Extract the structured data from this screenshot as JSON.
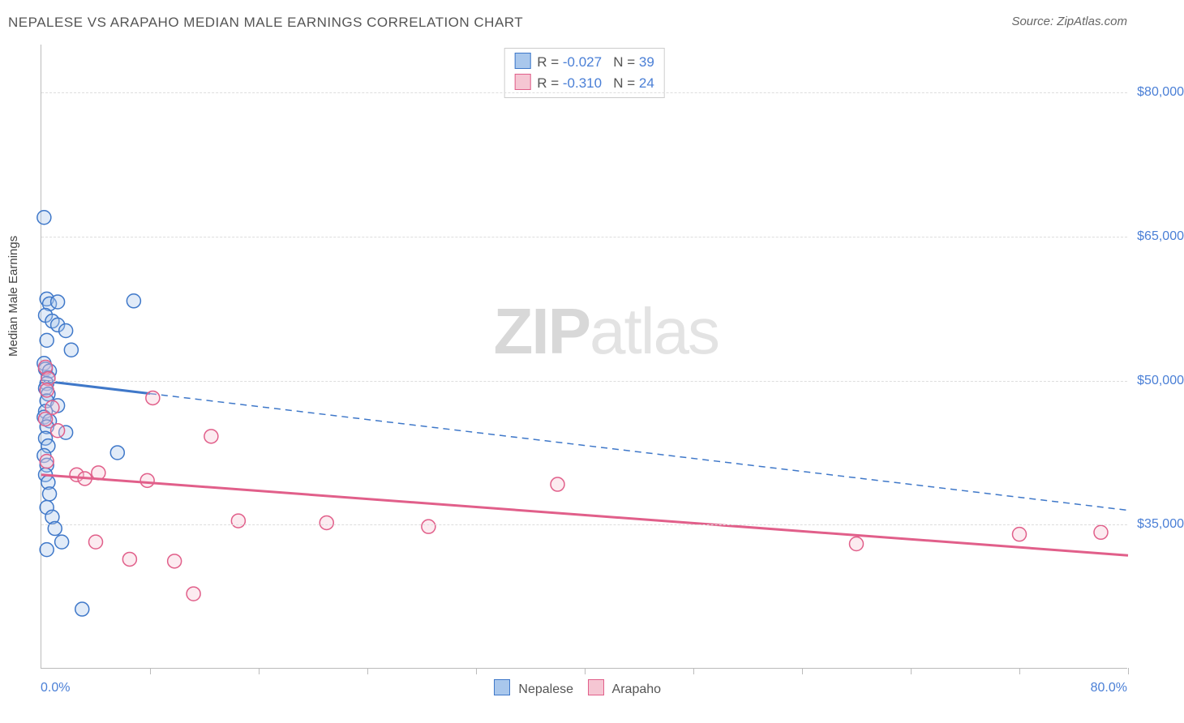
{
  "title": "NEPALESE VS ARAPAHO MEDIAN MALE EARNINGS CORRELATION CHART",
  "source": "Source: ZipAtlas.com",
  "ylabel": "Median Male Earnings",
  "watermark_a": "ZIP",
  "watermark_b": "atlas",
  "chart": {
    "type": "scatter",
    "xlim": [
      0,
      80
    ],
    "ylim": [
      20000,
      85000
    ],
    "x_min_label": "0.0%",
    "x_max_label": "80.0%",
    "y_ticks": [
      35000,
      50000,
      65000,
      80000
    ],
    "y_tick_labels": [
      "$35,000",
      "$50,000",
      "$65,000",
      "$80,000"
    ],
    "x_ticks_minor": [
      8,
      16,
      24,
      32,
      40,
      48,
      56,
      64,
      72,
      80
    ],
    "background_color": "#ffffff",
    "grid_color": "#dddddd",
    "axis_color": "#bbbbbb",
    "marker_radius": 8.5,
    "series": [
      {
        "name": "Nepalese",
        "fill": "#a9c7ec",
        "stroke": "#3f78c9",
        "R": "-0.027",
        "N": "39",
        "trend": {
          "y_at_xmin": 50000,
          "y_at_xmax": 36500,
          "solid_until_x": 8
        },
        "points": [
          [
            0.2,
            67000
          ],
          [
            0.4,
            58500
          ],
          [
            0.6,
            58000
          ],
          [
            1.2,
            58200
          ],
          [
            6.8,
            58300
          ],
          [
            0.3,
            56800
          ],
          [
            0.8,
            56200
          ],
          [
            1.2,
            55800
          ],
          [
            1.8,
            55200
          ],
          [
            0.4,
            54200
          ],
          [
            2.2,
            53200
          ],
          [
            0.2,
            51800
          ],
          [
            0.3,
            51200
          ],
          [
            0.6,
            51000
          ],
          [
            0.5,
            50300
          ],
          [
            0.4,
            49700
          ],
          [
            0.3,
            49200
          ],
          [
            0.5,
            48600
          ],
          [
            0.4,
            47900
          ],
          [
            1.2,
            47400
          ],
          [
            0.3,
            46800
          ],
          [
            0.2,
            46200
          ],
          [
            0.6,
            45800
          ],
          [
            0.4,
            45200
          ],
          [
            1.8,
            44600
          ],
          [
            0.3,
            44000
          ],
          [
            0.5,
            43200
          ],
          [
            0.2,
            42200
          ],
          [
            5.6,
            42500
          ],
          [
            0.4,
            41200
          ],
          [
            0.3,
            40200
          ],
          [
            0.5,
            39400
          ],
          [
            0.6,
            38200
          ],
          [
            0.4,
            36800
          ],
          [
            0.8,
            35800
          ],
          [
            1.0,
            34600
          ],
          [
            1.5,
            33200
          ],
          [
            0.4,
            32400
          ],
          [
            3.0,
            26200
          ]
        ]
      },
      {
        "name": "Arapaho",
        "fill": "#f5c6d3",
        "stroke": "#e15f8a",
        "R": "-0.310",
        "N": "24",
        "trend": {
          "y_at_xmin": 40200,
          "y_at_xmax": 31800,
          "solid_until_x": 80
        },
        "points": [
          [
            0.3,
            51400
          ],
          [
            0.5,
            50200
          ],
          [
            0.4,
            49000
          ],
          [
            0.8,
            47200
          ],
          [
            8.2,
            48200
          ],
          [
            0.3,
            46000
          ],
          [
            1.2,
            44800
          ],
          [
            12.5,
            44200
          ],
          [
            0.4,
            41600
          ],
          [
            2.6,
            40200
          ],
          [
            4.2,
            40400
          ],
          [
            3.2,
            39800
          ],
          [
            7.8,
            39600
          ],
          [
            38.0,
            39200
          ],
          [
            14.5,
            35400
          ],
          [
            21.0,
            35200
          ],
          [
            28.5,
            34800
          ],
          [
            60.0,
            33000
          ],
          [
            72.0,
            34000
          ],
          [
            78.0,
            34200
          ],
          [
            4.0,
            33200
          ],
          [
            6.5,
            31400
          ],
          [
            9.8,
            31200
          ],
          [
            11.2,
            27800
          ]
        ]
      }
    ]
  },
  "legend_bottom": [
    {
      "label": "Nepalese",
      "fill": "#a9c7ec",
      "stroke": "#3f78c9"
    },
    {
      "label": "Arapaho",
      "fill": "#f5c6d3",
      "stroke": "#e15f8a"
    }
  ]
}
